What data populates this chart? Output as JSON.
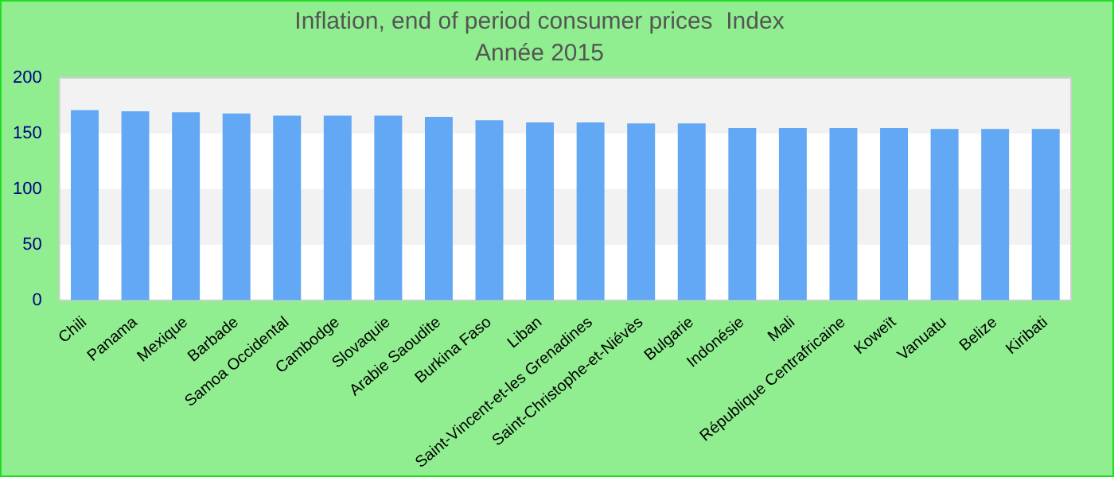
{
  "chart_data": {
    "type": "bar",
    "title": "Inflation, end of period consumer prices  Index",
    "subtitle": "Année 2015",
    "categories": [
      "Chili",
      "Panama",
      "Mexique",
      "Barbade",
      "Samoa Occidental",
      "Cambodge",
      "Slovaquie",
      "Arabie Saoudite",
      "Burkina Faso",
      "Liban",
      "Saint-Vincent-et-les Grenadines",
      "Saint-Christophe-et-Niévès",
      "Bulgarie",
      "Indonésie",
      "Mali",
      "République Centrafricaine",
      "Koweït",
      "Vanuatu",
      "Belize",
      "Kiribati"
    ],
    "values": [
      171,
      170,
      169,
      168,
      166,
      166,
      166,
      165,
      162,
      160,
      160,
      159,
      159,
      155,
      155,
      155,
      155,
      154,
      154,
      154
    ],
    "color": "#62a8f4",
    "ylim": [
      0,
      200
    ],
    "yticks": [
      0,
      50,
      100,
      150,
      200
    ]
  }
}
